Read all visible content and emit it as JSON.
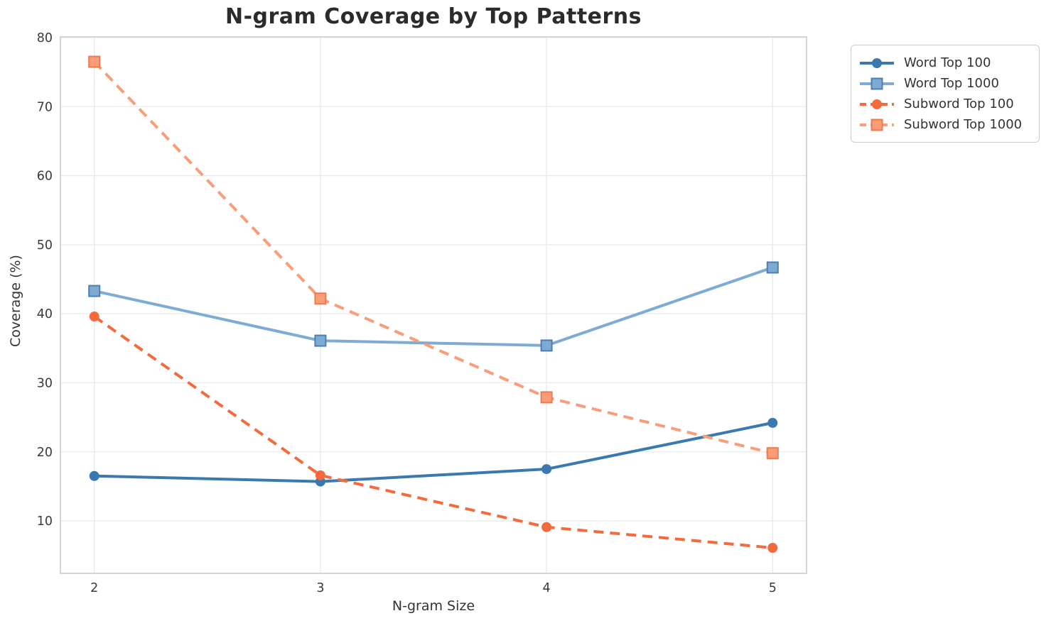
{
  "figure": {
    "background_color": "#ffffff",
    "grid_color": "#e9e9e9",
    "spine_color": "#d5d5d5",
    "tick_label_color": "#3a3a3a",
    "title_color": "#2b2b2b"
  },
  "chart_data": {
    "type": "line",
    "title": "N-gram Coverage by Top Patterns",
    "xlabel": "N-gram Size",
    "ylabel": "Coverage (%)",
    "x": [
      2,
      3,
      4,
      5
    ],
    "xtick_labels": [
      "2",
      "3",
      "4",
      "5"
    ],
    "yticks": [
      10,
      20,
      30,
      40,
      50,
      60,
      70,
      80
    ],
    "xlim": [
      1.85,
      5.15
    ],
    "ylim": [
      2.4,
      80.1
    ],
    "grid": true,
    "legend_position": "outside-top-right",
    "series": [
      {
        "name": "Word Top 100",
        "values": [
          16.5,
          15.7,
          17.5,
          24.2
        ],
        "color": "#3a78b0",
        "marker": "circle",
        "marker_edge": "#3a78b0",
        "line_style": "solid"
      },
      {
        "name": "Word Top 1000",
        "values": [
          43.3,
          36.1,
          35.4,
          46.7
        ],
        "color": "#7dabd4",
        "marker": "square",
        "marker_edge": "#4d7fae",
        "line_style": "solid"
      },
      {
        "name": "Subword Top 100",
        "values": [
          39.6,
          16.6,
          9.1,
          6.1
        ],
        "color": "#f56a3d",
        "marker": "circle",
        "marker_edge": "#f56a3d",
        "line_style": "dashed"
      },
      {
        "name": "Subword Top 1000",
        "values": [
          76.5,
          42.2,
          27.9,
          19.8
        ],
        "color": "#fa9c78",
        "marker": "square",
        "marker_edge": "#ef7a4e",
        "line_style": "dashed"
      }
    ]
  }
}
